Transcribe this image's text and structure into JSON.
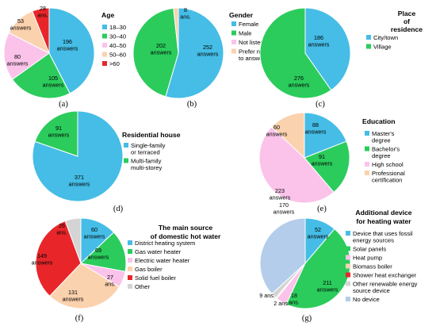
{
  "chart_data": [
    {
      "id": "a",
      "type": "pie",
      "panel_label": "(a)",
      "title": "Age",
      "categories": [
        "18–30",
        "30–40",
        "40–50",
        "50–60",
        ">60"
      ],
      "values": [
        196,
        105,
        80,
        53,
        28
      ],
      "colors": [
        "#45bde6",
        "#2bcc5c",
        "#fbc3ea",
        "#fbd2ae",
        "#e8262a"
      ],
      "slice_labels": [
        [
          "196",
          "answers"
        ],
        [
          "105",
          "answers"
        ],
        [
          "80",
          "answers"
        ],
        [
          "53",
          "answers"
        ],
        [
          "28",
          "ans."
        ]
      ],
      "legend": [
        "18–30",
        "30–40",
        "40–50",
        "50–60",
        ">60"
      ]
    },
    {
      "id": "b",
      "type": "pie",
      "panel_label": "(b)",
      "title": "Gender",
      "categories": [
        "Female",
        "Male",
        "Not listed",
        "Prefer not to answer"
      ],
      "values": [
        252,
        202,
        0,
        8
      ],
      "colors": [
        "#45bde6",
        "#2bcc5c",
        "#fbc3ea",
        "#fbd2ae"
      ],
      "slice_labels": [
        [
          "252",
          "answers"
        ],
        [
          "202",
          "answers"
        ],
        null,
        [
          "8",
          "ans."
        ]
      ],
      "legend": [
        [
          "Female"
        ],
        [
          "Male"
        ],
        [
          "Not listed"
        ],
        [
          "Prefer not",
          "to answer"
        ]
      ]
    },
    {
      "id": "c",
      "type": "pie",
      "panel_label": "(c)",
      "title_lines": [
        "Place",
        "of",
        "residence"
      ],
      "categories": [
        "City/town",
        "Village"
      ],
      "values": [
        186,
        276
      ],
      "colors": [
        "#45bde6",
        "#2bcc5c"
      ],
      "slice_labels": [
        [
          "186",
          "answers"
        ],
        [
          "276",
          "answers"
        ]
      ],
      "legend": [
        [
          "City/town"
        ],
        [
          "Village"
        ]
      ]
    },
    {
      "id": "d",
      "type": "pie",
      "panel_label": "(d)",
      "title": "Residential house",
      "categories": [
        "Single-family or terraced",
        "Multi-family multi-storey"
      ],
      "values": [
        371,
        91
      ],
      "colors": [
        "#45bde6",
        "#2bcc5c"
      ],
      "slice_labels": [
        [
          "371",
          "answers"
        ],
        [
          "91",
          "answers"
        ]
      ],
      "legend": [
        [
          "Single-family",
          "or terraced"
        ],
        [
          "Multi-family",
          "multi-storey"
        ]
      ]
    },
    {
      "id": "e",
      "type": "pie",
      "panel_label": "(e)",
      "title": "Education",
      "categories": [
        "Master's degree",
        "Bachelor's degree",
        "High school",
        "Professional certification"
      ],
      "values": [
        88,
        91,
        223,
        60
      ],
      "colors": [
        "#45bde6",
        "#2bcc5c",
        "#fbc3ea",
        "#fbd2ae"
      ],
      "slice_labels": [
        [
          "88",
          "answers"
        ],
        [
          "91",
          "answers"
        ],
        [
          "223",
          "answers"
        ],
        [
          "60",
          "answers"
        ]
      ],
      "legend": [
        [
          "Master's",
          "degree"
        ],
        [
          "Bachelor's",
          "degree"
        ],
        [
          "High school"
        ],
        [
          "Professional",
          "certification"
        ]
      ]
    },
    {
      "id": "f",
      "type": "pie",
      "panel_label": "(f)",
      "title_lines": [
        "The main source",
        "of domestic hot water"
      ],
      "categories": [
        "District heating system",
        "Gas water heater",
        "Electric water heater",
        "Gas boiler",
        "Solid fuel boiler",
        "Other"
      ],
      "values": [
        60,
        69,
        27,
        131,
        149,
        26
      ],
      "colors": [
        "#45bde6",
        "#2bcc5c",
        "#fbc3ea",
        "#fbd2ae",
        "#e8262a",
        "#d4d4d4"
      ],
      "slice_labels": [
        [
          "60",
          "answers"
        ],
        [
          "69",
          "answers"
        ],
        [
          "27",
          "ans."
        ],
        [
          "131",
          "answers"
        ],
        [
          "149",
          "answers"
        ],
        [
          "26",
          "ans."
        ]
      ],
      "legend": [
        [
          "District heating system"
        ],
        [
          "Gas water heater"
        ],
        [
          "Electric water heater"
        ],
        [
          "Gas boiler"
        ],
        [
          "Solid fuel boiler"
        ],
        [
          "Other"
        ]
      ]
    },
    {
      "id": "g",
      "type": "pie",
      "panel_label": "(g)",
      "title_lines": [
        "Additional device",
        "for heating water"
      ],
      "categories": [
        "Device that uses fossil energy sources",
        "Solar panels",
        "Heat pump",
        "Biomass boiler",
        "Shower heat exchanger",
        "Other renewable energy source device",
        "No device"
      ],
      "values": [
        52,
        211,
        18,
        2,
        0,
        9,
        170
      ],
      "colors": [
        "#45bde6",
        "#2bcc5c",
        "#fbc3ea",
        "#fbd2ae",
        "#e8262a",
        "#d4d4d4",
        "#b3cdea"
      ],
      "slice_labels": [
        [
          "52",
          "answers"
        ],
        [
          "211",
          "answers"
        ],
        [
          "18",
          "ans."
        ],
        [
          "2 ans."
        ],
        null,
        [
          "9 ans."
        ],
        [
          "170",
          "answers"
        ]
      ],
      "legend": [
        [
          "Device that uses fossil",
          "energy sources"
        ],
        [
          "Solar panels"
        ],
        [
          "Heat pump"
        ],
        [
          "Biomass boiler"
        ],
        [
          "Shower heat exchanger"
        ],
        [
          "Other renewable energy",
          "source device"
        ],
        [
          "No device"
        ]
      ]
    }
  ]
}
